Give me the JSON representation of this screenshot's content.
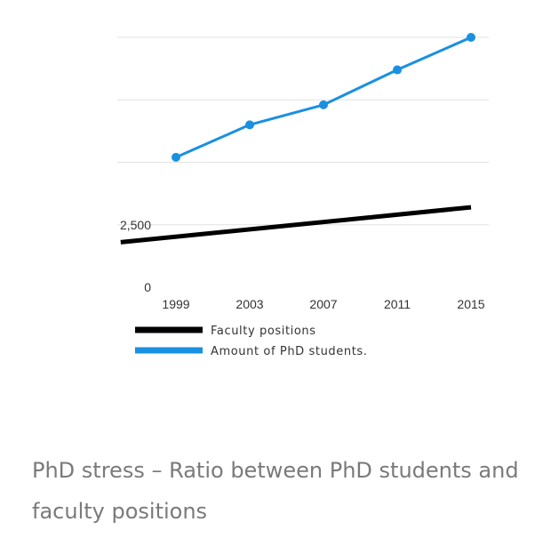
{
  "chart_data": {
    "type": "line",
    "x": [
      1999,
      2003,
      2007,
      2011,
      2015
    ],
    "yticks": [
      {
        "value": 0,
        "label": "0"
      },
      {
        "value": 2500,
        "label": "2,500"
      },
      {
        "value": 5000,
        "label": ""
      },
      {
        "value": 7500,
        "label": ""
      },
      {
        "value": 10000,
        "label": ""
      }
    ],
    "ylim": [
      0,
      10000
    ],
    "grid": true,
    "legend_position": "bottom-left",
    "series": [
      {
        "name": "Faculty positions",
        "color": "#000000",
        "markers": false,
        "x": [
          1996,
          2015
        ],
        "values": [
          1800,
          3200
        ]
      },
      {
        "name": "Amount of PhD students.",
        "color": "#1a90e0",
        "markers": true,
        "x": [
          1999,
          2003,
          2007,
          2011,
          2015
        ],
        "values": [
          5200,
          6500,
          7300,
          8700,
          10000
        ]
      }
    ]
  },
  "caption": "PhD stress – Ratio between PhD students and faculty positions"
}
